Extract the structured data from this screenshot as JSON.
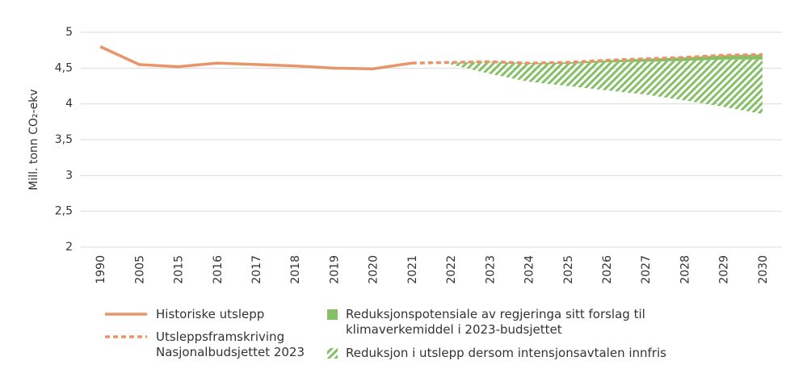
{
  "chart_data": {
    "type": "line",
    "y_label": "Mill. tonn CO₂-ekv",
    "categories": [
      "1990",
      "2005",
      "2015",
      "2016",
      "2017",
      "2018",
      "2019",
      "2020",
      "2021",
      "2022",
      "2023",
      "2024",
      "2025",
      "2026",
      "2027",
      "2028",
      "2029",
      "2030"
    ],
    "ylim": [
      2,
      5
    ],
    "yticks": [
      2,
      {
        "value": 2.5,
        "label": "2,5"
      },
      3,
      {
        "value": 3.5,
        "label": "3,5"
      },
      4,
      {
        "value": 4.5,
        "label": "4,5"
      },
      5
    ],
    "grid": true,
    "series": [
      {
        "name": "Historiske utslepp",
        "color": "#e8956a",
        "kind": "line",
        "dashed": false,
        "values": [
          4.8,
          4.55,
          4.52,
          4.57,
          4.55,
          4.53,
          4.5,
          4.49,
          4.57,
          null,
          null,
          null,
          null,
          null,
          null,
          null,
          null,
          null
        ]
      },
      {
        "name": "Utsleppsframskriving Nasjonalbudsjettet 2023",
        "color": "#e8956a",
        "kind": "line",
        "dashed": true,
        "values": [
          null,
          null,
          null,
          null,
          null,
          null,
          null,
          null,
          4.57,
          4.58,
          4.59,
          4.57,
          4.58,
          4.61,
          4.63,
          4.65,
          4.68,
          4.69
        ]
      },
      {
        "name": "Reduksjonspotensiale av regjeringa sitt forslag til klimaverkemiddel i 2023-budsjettet",
        "color": "#86c066",
        "kind": "area",
        "hatched": false,
        "values": [
          null,
          null,
          null,
          null,
          null,
          null,
          null,
          null,
          null,
          0,
          0.01,
          0.01,
          0.02,
          0.03,
          0.04,
          0.05,
          0.06,
          0.07
        ]
      },
      {
        "name": "Reduksjon i utslepp dersom intensjonsavtalen innfris",
        "color": "#86c066",
        "kind": "area",
        "hatched": true,
        "values": [
          null,
          null,
          null,
          null,
          null,
          null,
          null,
          null,
          null,
          0.03,
          0.16,
          0.25,
          0.31,
          0.39,
          0.46,
          0.55,
          0.66,
          0.76
        ]
      }
    ]
  }
}
